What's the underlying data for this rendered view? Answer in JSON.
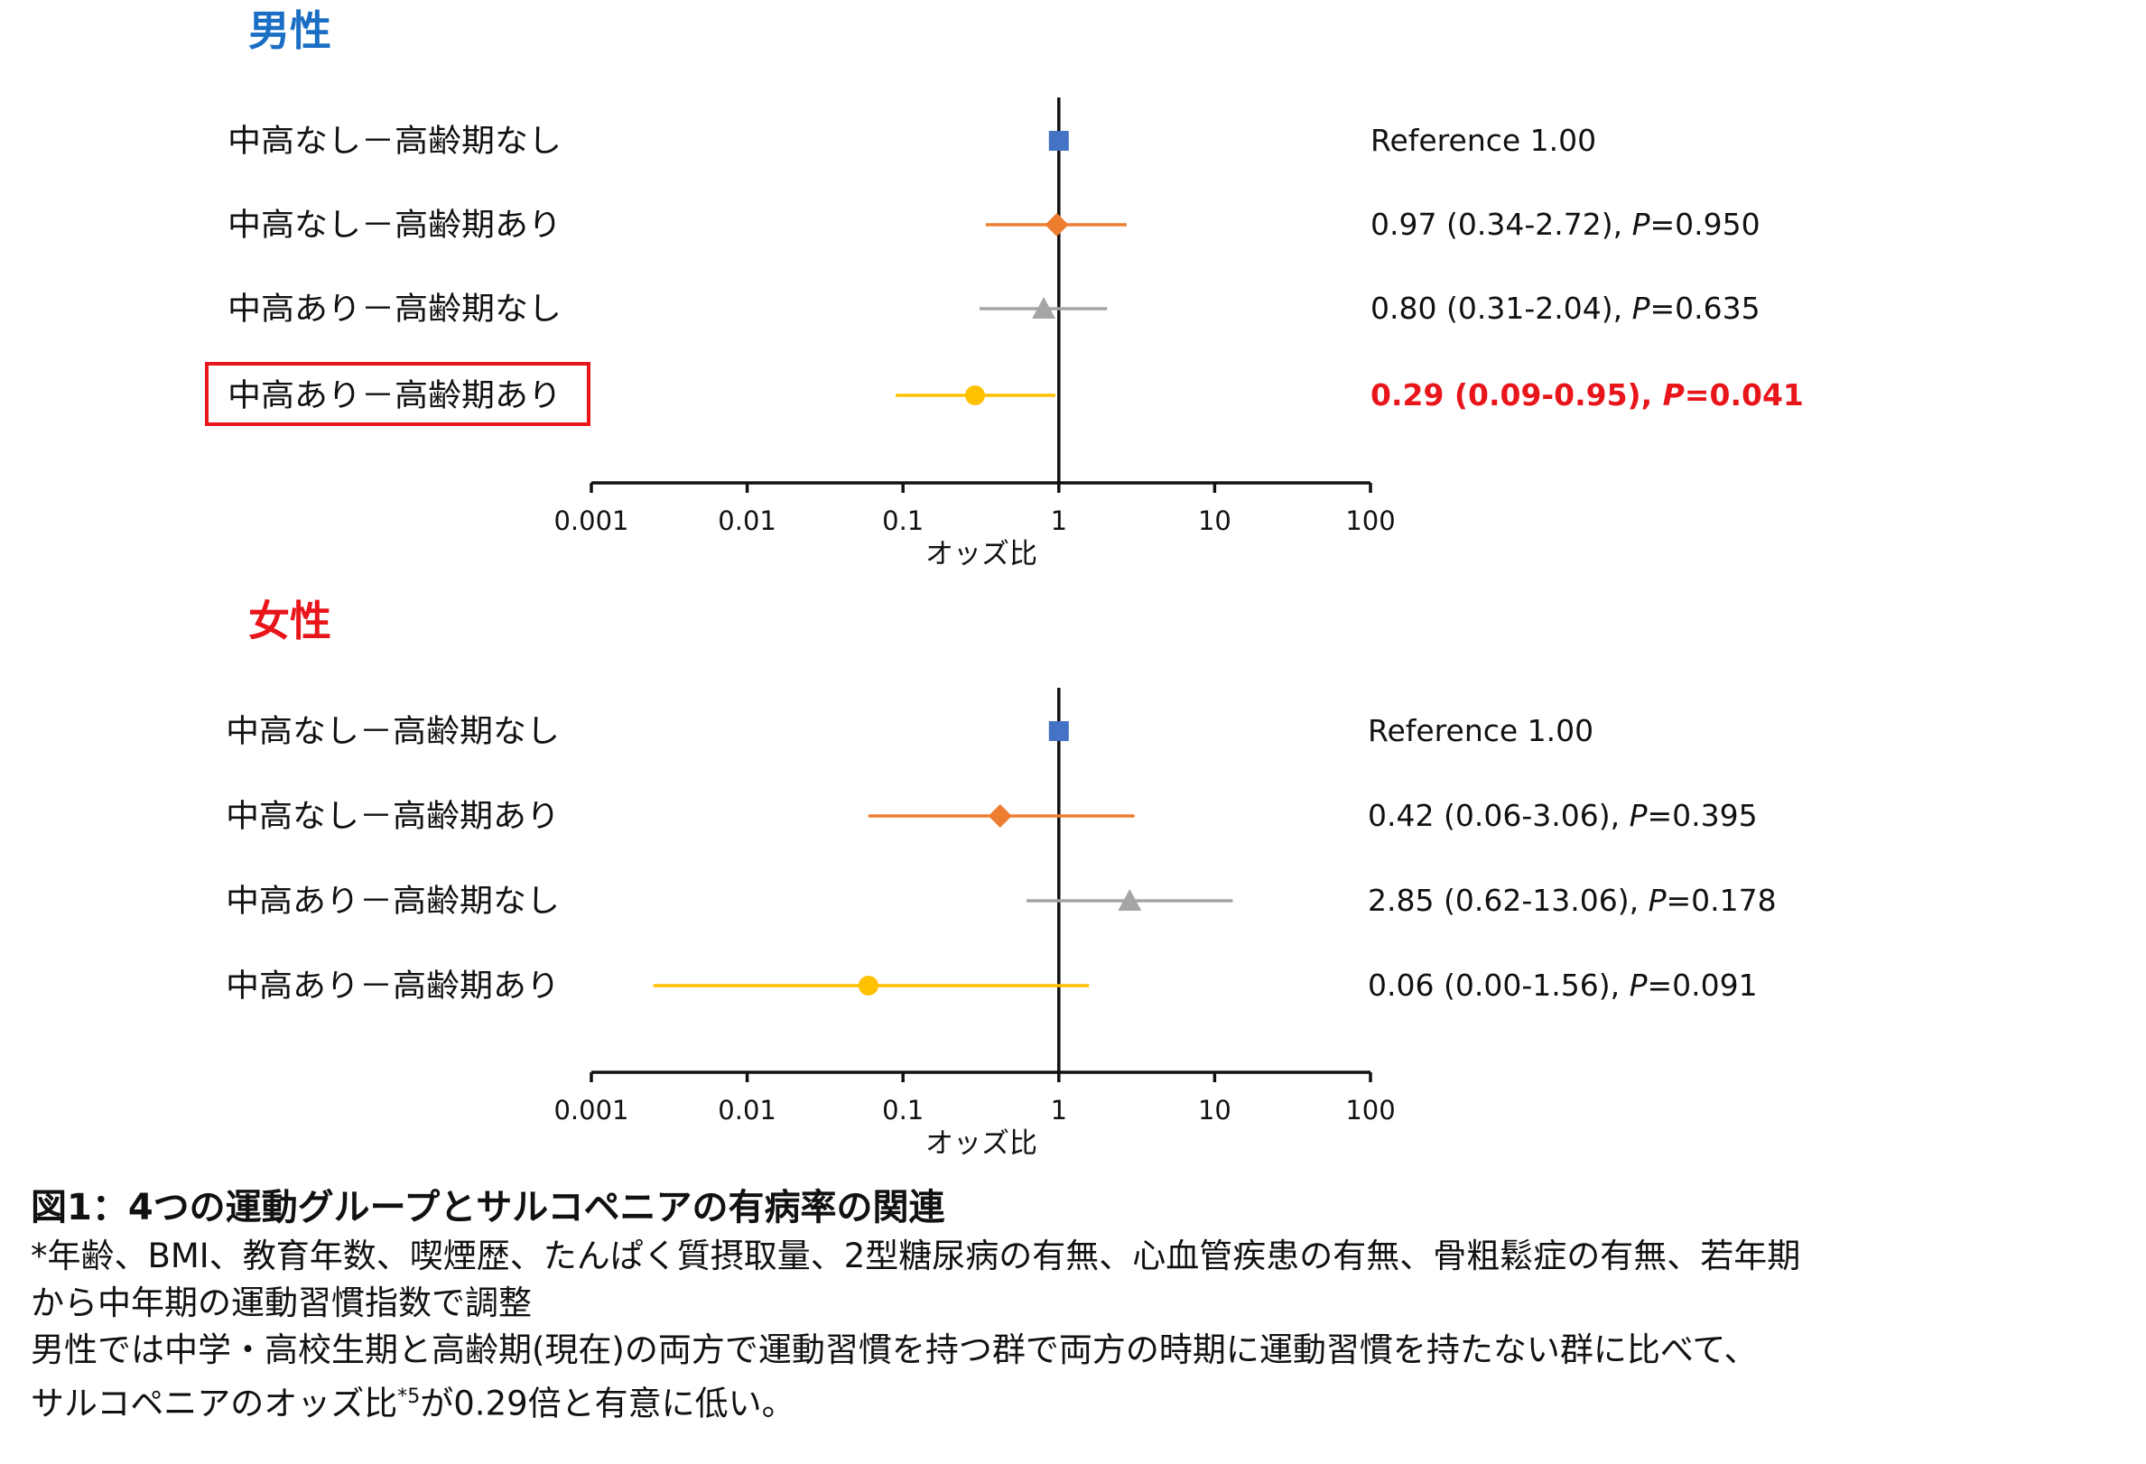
{
  "panels": [
    {
      "title": "男性",
      "title_color": "#1a6fc4",
      "rows": [
        {
          "label": "中高なし－高齢期なし",
          "value_text": "Reference  1.00",
          "highlight": false
        },
        {
          "label": "中高なし－高齢期あり",
          "value_prefix": "0.97 (0.34-2.72), ",
          "p_label": "P",
          "p_value": "=0.950",
          "highlight": false
        },
        {
          "label": "中高あり－高齢期なし",
          "value_prefix": "0.80 (0.31-2.04), ",
          "p_label": "P",
          "p_value": "=0.635",
          "highlight": false
        },
        {
          "label": "中高あり－高齢期あり",
          "value_prefix": "0.29 (0.09-0.95), ",
          "p_label": "P",
          "p_value": "=0.041",
          "highlight": true
        }
      ]
    },
    {
      "title": "女性",
      "title_color": "#e8151b",
      "rows": [
        {
          "label": "中高なし－高齢期なし",
          "value_text": "Reference  1.00",
          "highlight": false
        },
        {
          "label": "中高なし－高齢期あり",
          "value_prefix": "0.42 (0.06-3.06), ",
          "p_label": "P",
          "p_value": "=0.395",
          "highlight": false
        },
        {
          "label": "中高あり－高齢期なし",
          "value_prefix": "2.85 (0.62-13.06), ",
          "p_label": "P",
          "p_value": "=0.178",
          "highlight": false
        },
        {
          "label": "中高あり－高齢期あり",
          "value_prefix": "0.06 (0.00-1.56), ",
          "p_label": "P",
          "p_value": "=0.091",
          "highlight": false
        }
      ]
    }
  ],
  "colors": {
    "square": "#4472c4",
    "diamond": "#ed7d31",
    "triangle": "#a5a5a5",
    "circle": "#ffc000",
    "highlight": "#e8151b",
    "axis": "#111111"
  },
  "chart_data": [
    {
      "type": "forest",
      "title": "男性",
      "xlabel": "オッズ比",
      "xscale": "log",
      "xlim": [
        0.001,
        100
      ],
      "xticks": [
        "0.001",
        "0.01",
        "0.1",
        "1",
        "10",
        "100"
      ],
      "reference_line": 1,
      "series": [
        {
          "name": "中高なし－高齢期なし",
          "marker": "square",
          "or": 1.0,
          "lower": 1.0,
          "upper": 1.0
        },
        {
          "name": "中高なし－高齢期あり",
          "marker": "diamond",
          "or": 0.97,
          "lower": 0.34,
          "upper": 2.72,
          "p": 0.95
        },
        {
          "name": "中高あり－高齢期なし",
          "marker": "triangle",
          "or": 0.8,
          "lower": 0.31,
          "upper": 2.04,
          "p": 0.635
        },
        {
          "name": "中高あり－高齢期あり",
          "marker": "circle",
          "or": 0.29,
          "lower": 0.09,
          "upper": 0.95,
          "p": 0.041
        }
      ]
    },
    {
      "type": "forest",
      "title": "女性",
      "xlabel": "オッズ比",
      "xscale": "log",
      "xlim": [
        0.001,
        100
      ],
      "xticks": [
        "0.001",
        "0.01",
        "0.1",
        "1",
        "10",
        "100"
      ],
      "reference_line": 1,
      "series": [
        {
          "name": "中高なし－高齢期なし",
          "marker": "square",
          "or": 1.0,
          "lower": 1.0,
          "upper": 1.0
        },
        {
          "name": "中高なし－高齢期あり",
          "marker": "diamond",
          "or": 0.42,
          "lower": 0.06,
          "upper": 3.06,
          "p": 0.395
        },
        {
          "name": "中高あり－高齢期なし",
          "marker": "triangle",
          "or": 2.85,
          "lower": 0.62,
          "upper": 13.06,
          "p": 0.178
        },
        {
          "name": "中高あり－高齢期あり",
          "marker": "circle",
          "or": 0.06,
          "lower": 0.0025,
          "upper": 1.56,
          "p": 0.091
        }
      ]
    }
  ],
  "caption": {
    "title": "図1：4つの運動グループとサルコペニアの有病率の関連",
    "line1": "*年齢、BMI、教育年数、喫煙歴、たんぱく質摂取量、2型糖尿病の有無、心血管疾患の有無、骨粗鬆症の有無、若年期",
    "line2": "から中年期の運動習慣指数で調整",
    "line3": "男性では中学・高校生期と高齢期(現在)の両方で運動習慣を持つ群で両方の時期に運動習慣を持たない群に比べて、",
    "line4_a": "サルコペニアのオッズ比",
    "line4_sup": "*5",
    "line4_b": "が0.29倍と有意に低い。"
  }
}
